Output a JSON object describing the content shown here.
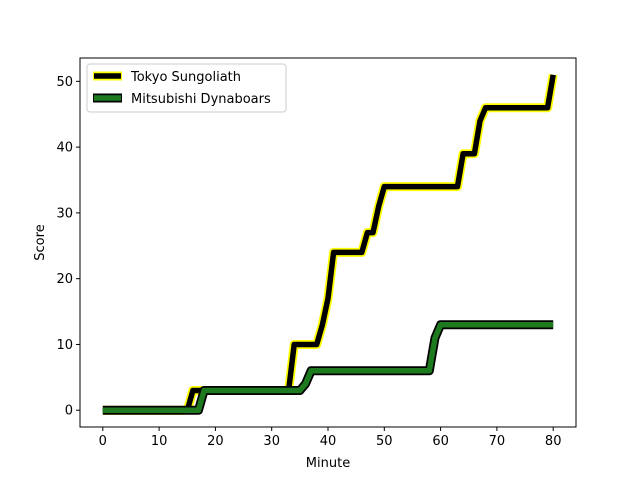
{
  "chart_data": {
    "type": "line",
    "title": "",
    "xlabel": "Minute",
    "ylabel": "Score",
    "xlim": [
      -4.05,
      84.05
    ],
    "ylim": [
      -2.55,
      53.55
    ],
    "xticks": [
      0,
      10,
      20,
      30,
      40,
      50,
      60,
      70,
      80
    ],
    "yticks": [
      0,
      10,
      20,
      30,
      40,
      50
    ],
    "grid": false,
    "legend_position": "upper-left",
    "series": [
      {
        "name": "Tokyo Sungoliath",
        "line_color": "#000000",
        "outline_color": "#ffff00",
        "x": [
          0,
          15,
          16,
          17,
          33,
          34,
          35,
          38,
          39,
          40,
          41,
          42,
          46,
          47,
          48,
          49,
          50,
          63,
          64,
          66,
          67,
          68,
          79,
          80
        ],
        "y": [
          0,
          0,
          3,
          3,
          3,
          10,
          10,
          10,
          13,
          17,
          24,
          24,
          24,
          27,
          27,
          31,
          34,
          34,
          39,
          39,
          44,
          46,
          46,
          51
        ]
      },
      {
        "name": "Mitsubishi Dynaboars",
        "line_color": "#1e7a1e",
        "outline_color": "#000000",
        "x": [
          0,
          17,
          18,
          35,
          36,
          37,
          58,
          59,
          60,
          80
        ],
        "y": [
          0,
          0,
          3,
          3,
          4,
          6,
          6,
          11,
          13,
          13
        ]
      }
    ]
  }
}
